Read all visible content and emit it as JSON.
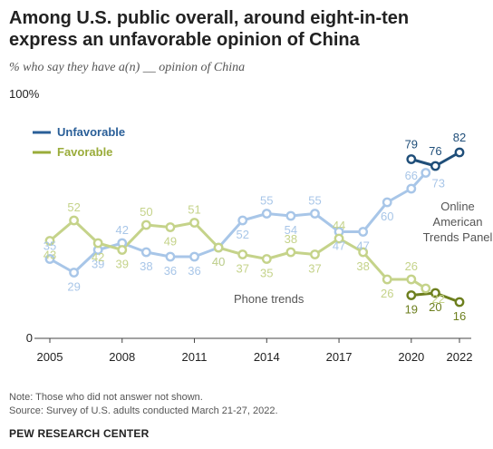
{
  "title": "Among U.S. public overall, around eight-in-ten express an unfavorable opinion of China",
  "subtitle": "% who say they have a(n) __ opinion of China",
  "note": "Note: Those who did not answer not shown.",
  "source": "Source: Survey of U.S. adults conducted March 21-27, 2022.",
  "footer": "PEW RESEARCH CENTER",
  "chart_data": {
    "type": "line",
    "ylim": [
      0,
      100
    ],
    "y_ticks": [
      {
        "value": 100,
        "label": "100%"
      },
      {
        "value": 0,
        "label": "0"
      }
    ],
    "xlim": [
      2005,
      2022
    ],
    "x_ticks": [
      2005,
      2008,
      2011,
      2014,
      2017,
      2020,
      2022
    ],
    "colors": {
      "unfavorable_phone": "#a8c6e8",
      "unfavorable_online": "#1f4e79",
      "favorable_phone": "#c5d38a",
      "favorable_online": "#6d7f1e"
    },
    "legend": [
      {
        "label": "Unfavorable",
        "color": "#2a5f98"
      },
      {
        "label": "Favorable",
        "color": "#9aac3a"
      }
    ],
    "annotations": {
      "phone": "Phone trends",
      "online": [
        "Online",
        "American",
        "Trends Panel"
      ]
    },
    "series": [
      {
        "name": "Unfavorable",
        "mode": "Phone trends",
        "x": [
          2005,
          2006,
          2007,
          2008,
          2009,
          2010,
          2011,
          2012,
          2013,
          2014,
          2015,
          2016,
          2017,
          2018,
          2019,
          2020
        ],
        "values": [
          35,
          29,
          39,
          42,
          38,
          36,
          36,
          40,
          52,
          55,
          54,
          55,
          47,
          47,
          60,
          66
        ]
      },
      {
        "name": "Unfavorable",
        "mode": "Online American Trends Panel",
        "x": [
          2020,
          2021,
          2022
        ],
        "values": [
          79,
          76,
          82
        ]
      },
      {
        "name": "Favorable",
        "mode": "Phone trends",
        "x": [
          2005,
          2006,
          2007,
          2008,
          2009,
          2010,
          2011,
          2012,
          2013,
          2014,
          2015,
          2016,
          2017,
          2018,
          2019,
          2020
        ],
        "values": [
          43,
          52,
          42,
          39,
          50,
          49,
          51,
          40,
          37,
          35,
          38,
          37,
          44,
          38,
          26,
          26
        ]
      },
      {
        "name": "Favorable",
        "mode": "Online American Trends Panel",
        "x": [
          2020,
          2021,
          2022
        ],
        "values": [
          19,
          20,
          16
        ]
      }
    ],
    "extra_points": [
      {
        "series": "Unfavorable",
        "x": 2020.6,
        "value": 73
      },
      {
        "series": "Favorable",
        "x": 2020.6,
        "value": 22
      }
    ]
  }
}
